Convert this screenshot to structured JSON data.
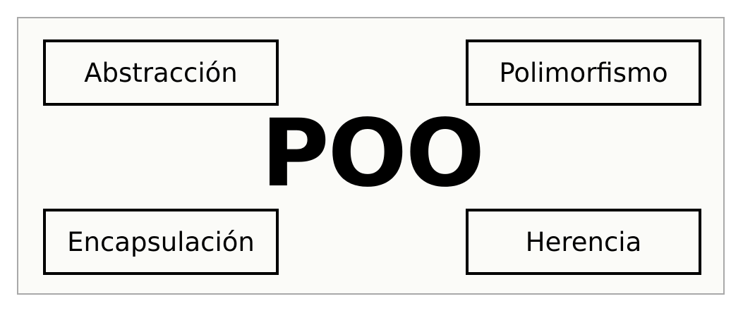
{
  "diagram": {
    "center_label": "POO",
    "concepts": {
      "top_left": "Abstracción",
      "top_right": "Polimorfismo",
      "bottom_left": "Encapsulación",
      "bottom_right": "Herencia"
    }
  },
  "colors": {
    "background": "#fbfbf8",
    "frame_border": "#a9a9a9",
    "box_border": "#000000",
    "text": "#000000"
  }
}
